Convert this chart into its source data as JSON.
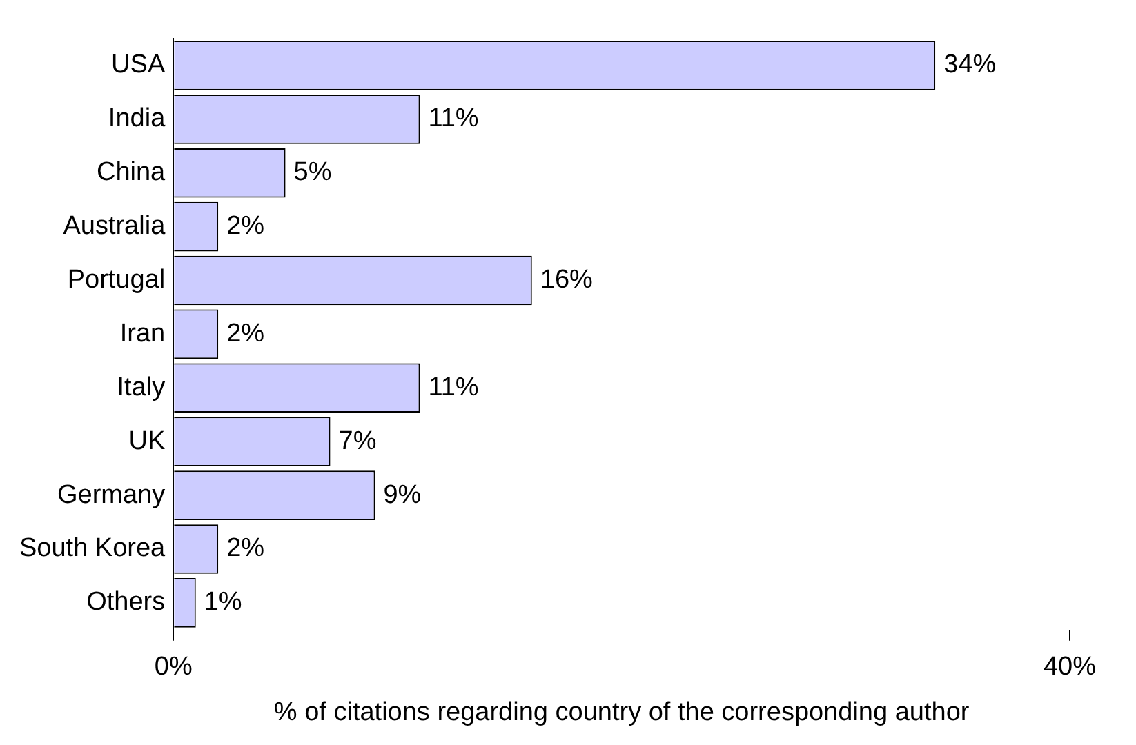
{
  "chart_data": {
    "type": "bar",
    "orientation": "horizontal",
    "xlabel": "% of citations regarding country of the corresponding author",
    "categories": [
      "USA",
      "India",
      "China",
      "Australia",
      "Portugal",
      "Iran",
      "Italy",
      "UK",
      "Germany",
      "South Korea",
      "Others"
    ],
    "values": [
      34,
      11,
      5,
      2,
      16,
      2,
      11,
      7,
      9,
      2,
      1
    ],
    "value_labels": [
      "34%",
      "11%",
      "5%",
      "2%",
      "16%",
      "2%",
      "11%",
      "7%",
      "9%",
      "2%",
      "1%"
    ],
    "color": "#ccccff",
    "xlim": [
      0,
      40
    ],
    "xticks": [
      {
        "value": 0,
        "label": "0%"
      },
      {
        "value": 40,
        "label": "40%"
      }
    ],
    "grid": false,
    "legend": false
  }
}
